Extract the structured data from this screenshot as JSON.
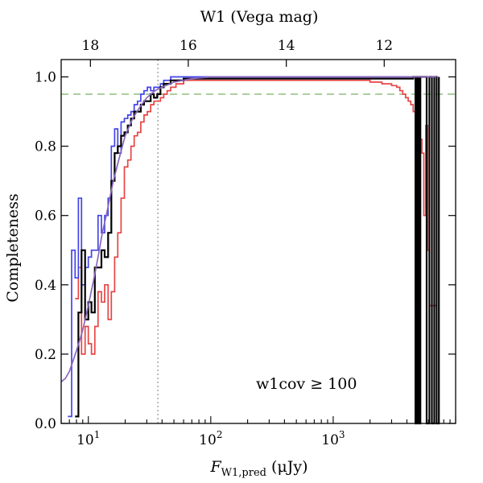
{
  "chart_data": {
    "type": "line",
    "title": "",
    "xlabel": {
      "main": "F",
      "sub": "W1,pred",
      "unit": " (μJy)"
    },
    "ylabel": "Completeness",
    "x2label": "W1 (Vega mag)",
    "xscale": "log",
    "xlim": [
      6,
      10000
    ],
    "ylim": [
      0,
      1.05
    ],
    "yticks": [
      0.0,
      0.2,
      0.4,
      0.6,
      0.8,
      1.0
    ],
    "ytick_labels": [
      "0.0",
      "0.2",
      "0.4",
      "0.6",
      "0.8",
      "1.0"
    ],
    "xticks": [
      {
        "value": 10,
        "base": "10",
        "exp": "1"
      },
      {
        "value": 100,
        "base": "10",
        "exp": "2"
      },
      {
        "value": 1000,
        "base": "10",
        "exp": "3"
      }
    ],
    "x2ticks": [
      {
        "flux": 10.4,
        "label": "18"
      },
      {
        "flux": 65.5,
        "label": "16"
      },
      {
        "flux": 414,
        "label": "14"
      },
      {
        "flux": 2610,
        "label": "12"
      }
    ],
    "annotation": "w1cov ≥ 100",
    "hline": {
      "y": 0.95,
      "color": "#8fbf7f"
    },
    "vline": {
      "x": 37,
      "color": "#999999"
    },
    "series": [
      {
        "color": "#e84444",
        "x": [
          7.8,
          8.3,
          8.8,
          9.4,
          10.0,
          10.6,
          11.3,
          12.0,
          12.8,
          13.6,
          14.5,
          15.4,
          16.4,
          17.4,
          18.5,
          19.7,
          21.0,
          22.3,
          23.7,
          25.2,
          26.8,
          28.5,
          30.3,
          32.3,
          34.3,
          36.5,
          38.8,
          41.3,
          44.0,
          47.0,
          52,
          60,
          80,
          150,
          400,
          1000,
          1500,
          2000,
          2500,
          3000,
          3300,
          3500,
          3700,
          3900,
          4100,
          4300,
          4500,
          4700,
          4900,
          5100,
          5300,
          5500,
          5700,
          5900,
          6100,
          6400,
          7000
        ],
        "y": [
          0.36,
          0.45,
          0.2,
          0.28,
          0.23,
          0.2,
          0.28,
          0.38,
          0.35,
          0.4,
          0.3,
          0.38,
          0.48,
          0.55,
          0.65,
          0.74,
          0.76,
          0.8,
          0.83,
          0.84,
          0.87,
          0.89,
          0.9,
          0.92,
          0.93,
          0.93,
          0.94,
          0.95,
          0.96,
          0.97,
          0.98,
          0.99,
          0.99,
          0.99,
          0.99,
          0.99,
          0.99,
          0.985,
          0.98,
          0.975,
          0.97,
          0.96,
          0.95,
          0.94,
          0.93,
          0.92,
          0.9,
          0.88,
          0.85,
          0.82,
          0.78,
          0.6,
          0.86,
          0.5,
          0.34,
          0.34,
          0.34
        ]
      },
      {
        "color": "#4444e8",
        "x": [
          6.8,
          7.3,
          7.8,
          8.3,
          8.8,
          9.4,
          10.0,
          10.6,
          11.3,
          12.0,
          12.8,
          13.6,
          14.5,
          15.4,
          16.4,
          17.4,
          18.5,
          19.7,
          21.0,
          22.3,
          23.7,
          25.2,
          26.8,
          28.5,
          30.3,
          32.3,
          34.3,
          36.5,
          38.8,
          41.3,
          44.0,
          47.0,
          52,
          60,
          100,
          1000,
          5000,
          7000
        ],
        "y": [
          0.02,
          0.5,
          0.42,
          0.65,
          0.4,
          0.45,
          0.48,
          0.5,
          0.5,
          0.6,
          0.55,
          0.6,
          0.65,
          0.8,
          0.85,
          0.78,
          0.87,
          0.88,
          0.89,
          0.9,
          0.92,
          0.93,
          0.95,
          0.96,
          0.97,
          0.96,
          0.97,
          0.97,
          0.98,
          0.99,
          0.99,
          1.0,
          1.0,
          1.0,
          1.0,
          1.0,
          1.0,
          1.0
        ]
      },
      {
        "color": "#000000",
        "x": [
          7.8,
          8.3,
          8.8,
          9.4,
          10.0,
          10.6,
          11.3,
          12.0,
          12.8,
          13.6,
          14.5,
          15.4,
          16.4,
          17.4,
          18.5,
          19.7,
          21.0,
          22.3,
          23.7,
          25.2,
          26.8,
          28.5,
          30.3,
          32.3,
          34.3,
          36.5,
          38.8,
          41.3,
          44.0,
          47.0,
          52,
          60,
          80,
          200,
          1000,
          4500,
          4700,
          4850,
          5000,
          5150,
          5300,
          5500,
          5800,
          6100,
          6400,
          6700,
          7000,
          7300
        ],
        "y": [
          0.02,
          0.32,
          0.5,
          0.3,
          0.35,
          0.32,
          0.45,
          0.45,
          0.5,
          0.48,
          0.55,
          0.7,
          0.78,
          0.8,
          0.83,
          0.84,
          0.86,
          0.88,
          0.9,
          0.9,
          0.92,
          0.93,
          0.93,
          0.95,
          0.94,
          0.95,
          0.97,
          0.98,
          0.98,
          0.99,
          0.99,
          0.995,
          0.995,
          0.995,
          0.995,
          1.0,
          0.0,
          1.0,
          0.0,
          1.0,
          1.0,
          1.0,
          0.0,
          1.0,
          0.0,
          1.0,
          0.0,
          1.0
        ]
      },
      {
        "color": "#8a66bb",
        "x": [
          6,
          6.5,
          7,
          7.5,
          8,
          8.5,
          9,
          10,
          11,
          12,
          13,
          14,
          16,
          18,
          20,
          23,
          26,
          30,
          35,
          40,
          50,
          70,
          100,
          1000,
          4000,
          7000
        ],
        "y": [
          0.12,
          0.13,
          0.15,
          0.18,
          0.21,
          0.24,
          0.27,
          0.34,
          0.41,
          0.48,
          0.55,
          0.6,
          0.7,
          0.77,
          0.83,
          0.88,
          0.91,
          0.94,
          0.96,
          0.97,
          0.985,
          0.995,
          1.0,
          1.0,
          1.0,
          1.0
        ]
      }
    ]
  }
}
